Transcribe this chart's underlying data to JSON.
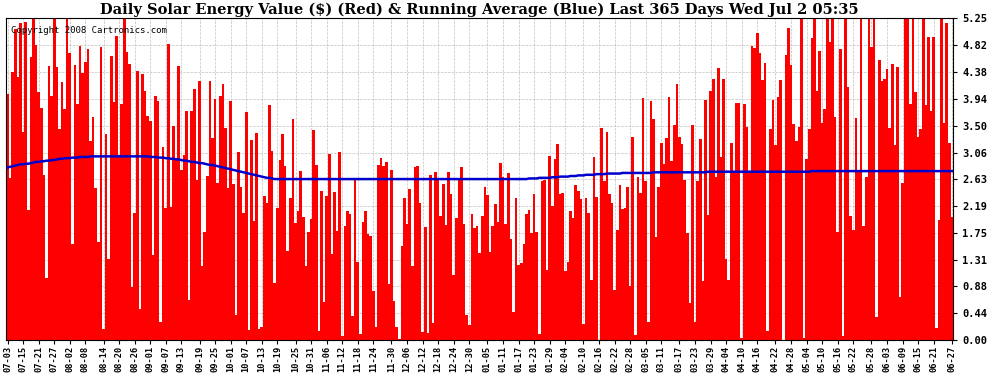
{
  "title": "Daily Solar Energy Value ($) (Red) & Running Average (Blue) Last 365 Days Wed Jul 2 05:35",
  "copyright_text": "Copyright 2008 Cartronics.com",
  "ylabel_right_ticks": [
    0.0,
    0.44,
    0.88,
    1.31,
    1.75,
    2.19,
    2.63,
    3.06,
    3.5,
    3.94,
    4.38,
    4.82,
    5.25
  ],
  "ymax": 5.25,
  "ymin": 0.0,
  "bar_color": "#ff0000",
  "avg_line_color": "#0000cc",
  "background_color": "#ffffff",
  "grid_color": "#b0b0b0",
  "title_fontsize": 10.5,
  "copyright_fontsize": 6.5,
  "x_labels": [
    "07-03",
    "07-15",
    "07-21",
    "07-27",
    "08-02",
    "08-08",
    "08-14",
    "08-20",
    "08-26",
    "09-01",
    "09-07",
    "09-13",
    "09-19",
    "09-25",
    "10-01",
    "10-07",
    "10-13",
    "10-19",
    "10-25",
    "10-31",
    "11-06",
    "11-12",
    "11-18",
    "11-24",
    "11-30",
    "12-06",
    "12-12",
    "12-18",
    "12-24",
    "12-30",
    "01-05",
    "01-11",
    "01-17",
    "01-23",
    "01-29",
    "02-04",
    "02-10",
    "02-16",
    "02-22",
    "02-28",
    "03-05",
    "03-11",
    "03-17",
    "03-23",
    "03-29",
    "04-04",
    "04-10",
    "04-16",
    "04-22",
    "04-28",
    "05-04",
    "05-10",
    "05-16",
    "05-22",
    "05-28",
    "06-03",
    "06-09",
    "06-15",
    "06-21",
    "06-27"
  ],
  "num_days": 365,
  "avg_line_values": [
    2.82,
    2.83,
    2.84,
    2.85,
    2.86,
    2.87,
    2.87,
    2.88,
    2.88,
    2.89,
    2.9,
    2.91,
    2.91,
    2.92,
    2.92,
    2.93,
    2.93,
    2.94,
    2.94,
    2.95,
    2.96,
    2.96,
    2.97,
    2.97,
    2.97,
    2.98,
    2.98,
    2.98,
    2.99,
    2.99,
    2.99,
    2.99,
    3.0,
    3.0,
    3.0,
    3.0,
    3.0,
    3.0,
    3.0,
    3.0,
    3.0,
    3.0,
    3.0,
    3.0,
    3.0,
    3.0,
    3.0,
    3.0,
    3.0,
    3.0,
    3.0,
    3.0,
    3.0,
    3.0,
    3.0,
    2.99,
    2.99,
    2.99,
    2.98,
    2.98,
    2.98,
    2.97,
    2.97,
    2.96,
    2.96,
    2.95,
    2.95,
    2.94,
    2.93,
    2.93,
    2.92,
    2.91,
    2.91,
    2.9,
    2.89,
    2.89,
    2.88,
    2.87,
    2.86,
    2.86,
    2.85,
    2.84,
    2.83,
    2.82,
    2.81,
    2.8,
    2.79,
    2.78,
    2.77,
    2.76,
    2.75,
    2.74,
    2.73,
    2.72,
    2.71,
    2.7,
    2.69,
    2.68,
    2.67,
    2.66,
    2.65,
    2.65,
    2.64,
    2.63,
    2.63,
    2.63,
    2.63,
    2.63,
    2.63,
    2.63,
    2.63,
    2.63,
    2.63,
    2.63,
    2.63,
    2.63,
    2.63,
    2.63,
    2.63,
    2.63,
    2.63,
    2.63,
    2.63,
    2.63,
    2.63,
    2.63,
    2.63,
    2.63,
    2.63,
    2.63,
    2.63,
    2.63,
    2.63,
    2.63,
    2.63,
    2.63,
    2.63,
    2.63,
    2.63,
    2.63,
    2.63,
    2.63,
    2.63,
    2.63,
    2.63,
    2.63,
    2.63,
    2.63,
    2.63,
    2.63,
    2.63,
    2.63,
    2.63,
    2.63,
    2.63,
    2.63,
    2.63,
    2.63,
    2.63,
    2.63,
    2.63,
    2.63,
    2.63,
    2.63,
    2.63,
    2.63,
    2.63,
    2.63,
    2.63,
    2.63,
    2.63,
    2.63,
    2.63,
    2.63,
    2.63,
    2.63,
    2.63,
    2.63,
    2.63,
    2.63,
    2.63,
    2.63,
    2.63,
    2.63,
    2.63,
    2.63,
    2.63,
    2.63,
    2.63,
    2.63,
    2.63,
    2.63,
    2.63,
    2.63,
    2.63,
    2.63,
    2.63,
    2.63,
    2.63,
    2.63,
    2.63,
    2.64,
    2.64,
    2.64,
    2.64,
    2.65,
    2.65,
    2.65,
    2.65,
    2.65,
    2.66,
    2.66,
    2.66,
    2.67,
    2.67,
    2.67,
    2.67,
    2.68,
    2.68,
    2.68,
    2.69,
    2.69,
    2.69,
    2.7,
    2.7,
    2.7,
    2.7,
    2.71,
    2.71,
    2.71,
    2.71,
    2.72,
    2.72,
    2.72,
    2.72,
    2.72,
    2.72,
    2.73,
    2.73,
    2.73,
    2.73,
    2.73,
    2.73,
    2.73,
    2.73,
    2.73,
    2.73,
    2.73,
    2.73,
    2.74,
    2.74,
    2.74,
    2.74,
    2.74,
    2.74,
    2.74,
    2.74,
    2.74,
    2.74,
    2.74,
    2.74,
    2.74,
    2.74,
    2.74,
    2.74,
    2.74,
    2.74,
    2.74,
    2.74,
    2.74,
    2.75,
    2.75,
    2.75,
    2.75,
    2.75,
    2.75,
    2.75,
    2.75,
    2.75,
    2.75,
    2.75,
    2.75,
    2.75,
    2.75,
    2.75,
    2.75,
    2.75,
    2.75,
    2.75,
    2.75,
    2.75,
    2.75,
    2.75,
    2.75,
    2.75,
    2.75,
    2.75,
    2.75,
    2.75,
    2.75,
    2.75,
    2.75,
    2.75,
    2.75,
    2.75,
    2.75,
    2.75,
    2.75,
    2.75,
    2.75,
    2.76,
    2.76,
    2.76,
    2.76,
    2.76,
    2.76,
    2.76,
    2.76,
    2.76,
    2.76,
    2.76,
    2.76,
    2.76,
    2.76,
    2.76,
    2.76,
    2.76,
    2.76,
    2.76,
    2.76,
    2.76,
    2.76,
    2.76,
    2.76,
    2.76,
    2.76,
    2.76,
    2.76,
    2.76,
    2.76,
    2.76,
    2.76,
    2.76,
    2.76,
    2.76,
    2.76,
    2.76,
    2.76,
    2.76,
    2.76,
    2.76,
    2.76,
    2.76,
    2.76,
    2.76,
    2.76,
    2.76,
    2.76,
    2.76,
    2.76,
    2.76,
    2.76,
    2.76,
    2.76,
    2.76
  ]
}
